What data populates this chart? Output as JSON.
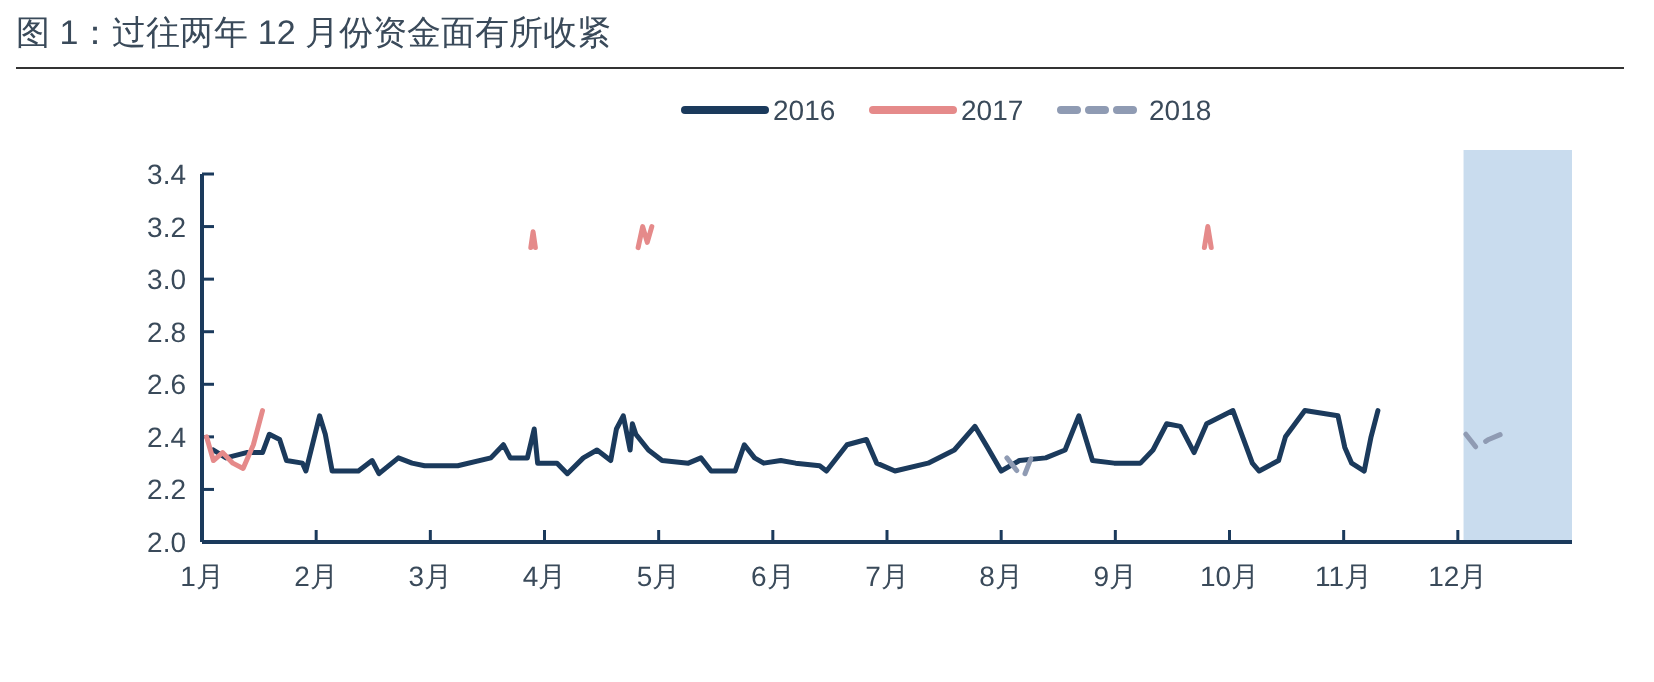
{
  "chart_data": {
    "type": "line",
    "title": "图 1：过往两年 12 月份资金面有所收紧",
    "xlim": [
      1,
      13
    ],
    "ylim": [
      2.0,
      3.4
    ],
    "xticks": [
      {
        "value": 1,
        "label": "1月"
      },
      {
        "value": 2,
        "label": "2月"
      },
      {
        "value": 3,
        "label": "3月"
      },
      {
        "value": 4,
        "label": "4月"
      },
      {
        "value": 5,
        "label": "5月"
      },
      {
        "value": 6,
        "label": "6月"
      },
      {
        "value": 7,
        "label": "7月"
      },
      {
        "value": 8,
        "label": "8月"
      },
      {
        "value": 9,
        "label": "9月"
      },
      {
        "value": 10,
        "label": "10月"
      },
      {
        "value": 11,
        "label": "11月"
      },
      {
        "value": 12,
        "label": "12月"
      }
    ],
    "yticks": [
      {
        "value": 2.0,
        "label": "2.0"
      },
      2.2,
      2.4,
      2.6,
      2.8,
      {
        "value": 3.0,
        "label": "3.0"
      },
      3.2,
      3.4
    ],
    "legend": "top",
    "grid": false,
    "marker": "none",
    "bands": [
      {
        "axis": "x",
        "from": 12.05,
        "to": 13,
        "color": "#c9dcee"
      }
    ],
    "series": [
      {
        "name": "2016",
        "color": "#1b3a5c",
        "line_style": "solid",
        "x": [
          1.1,
          1.21,
          1.39,
          1.53,
          1.59,
          1.68,
          1.74,
          1.88,
          1.91,
          2.03,
          2.08,
          2.14,
          2.37,
          2.49,
          2.55,
          2.72,
          2.84,
          2.95,
          3.24,
          3.53,
          3.64,
          3.7,
          3.85,
          3.91,
          3.94,
          4.11,
          4.2,
          4.34,
          4.46,
          4.58,
          4.63,
          4.69,
          4.75,
          4.77,
          4.8,
          4.91,
          5.03,
          5.26,
          5.37,
          5.46,
          5.55,
          5.67,
          5.75,
          5.84,
          5.92,
          6.07,
          6.2,
          6.41,
          6.47,
          6.65,
          6.82,
          6.91,
          7.07,
          7.36,
          7.59,
          7.77,
          7.88,
          8.0,
          8.16,
          8.39,
          8.56,
          8.68,
          8.8,
          8.99,
          9.22,
          9.33,
          9.45,
          9.57,
          9.69,
          9.8,
          10.03,
          10.2,
          10.26,
          10.43,
          10.49,
          10.66,
          10.95,
          11.01,
          11.07,
          11.18,
          11.24,
          11.3
        ],
        "values": [
          2.35,
          2.32,
          2.34,
          2.34,
          2.41,
          2.39,
          2.31,
          2.3,
          2.27,
          2.48,
          2.41,
          2.27,
          2.27,
          2.31,
          2.26,
          2.32,
          2.3,
          2.29,
          2.29,
          2.32,
          2.37,
          2.32,
          2.32,
          2.43,
          2.3,
          2.3,
          2.26,
          2.32,
          2.35,
          2.31,
          2.43,
          2.48,
          2.35,
          2.45,
          2.41,
          2.35,
          2.31,
          2.3,
          2.32,
          2.27,
          2.27,
          2.27,
          2.37,
          2.32,
          2.3,
          2.31,
          2.3,
          2.29,
          2.27,
          2.37,
          2.39,
          2.3,
          2.27,
          2.3,
          2.35,
          2.44,
          2.36,
          2.27,
          2.31,
          2.32,
          2.35,
          2.48,
          2.31,
          2.3,
          2.3,
          2.35,
          2.45,
          2.44,
          2.34,
          2.45,
          2.5,
          2.3,
          2.27,
          2.31,
          2.4,
          2.5,
          2.48,
          2.36,
          2.3,
          2.27,
          2.4,
          2.5
        ]
      },
      {
        "name": "2017",
        "color": "#e58a8a",
        "line_style": "solid",
        "x": [
          1.04,
          1.1,
          1.18,
          1.27,
          1.36,
          1.45,
          1.53
        ],
        "values": [
          2.4,
          2.31,
          2.34,
          2.3,
          2.28,
          2.37,
          2.5
        ]
      },
      {
        "color": "#e58a8a",
        "line_style": "solid",
        "x": [
          3.88,
          3.9,
          3.92
        ],
        "values": [
          3.12,
          3.18,
          3.12
        ]
      },
      {
        "color": "#e58a8a",
        "line_style": "solid",
        "x": [
          4.82,
          4.86,
          4.9,
          4.94
        ],
        "values": [
          3.12,
          3.2,
          3.14,
          3.2
        ]
      },
      {
        "color": "#e58a8a",
        "line_style": "solid",
        "x": [
          9.78,
          9.81,
          9.84
        ],
        "values": [
          3.12,
          3.2,
          3.12
        ]
      },
      {
        "name": "2018",
        "color": "#8f9bb3",
        "line_style": "dashed",
        "x": [
          8.05,
          8.14,
          8.2,
          8.29
        ],
        "values": [
          2.32,
          2.27,
          2.25,
          2.35
        ]
      },
      {
        "color": "#8f9bb3",
        "line_style": "dashed",
        "x": [
          12.07,
          12.16,
          12.27,
          12.38
        ],
        "values": [
          2.41,
          2.36,
          2.39,
          2.41
        ]
      }
    ]
  }
}
